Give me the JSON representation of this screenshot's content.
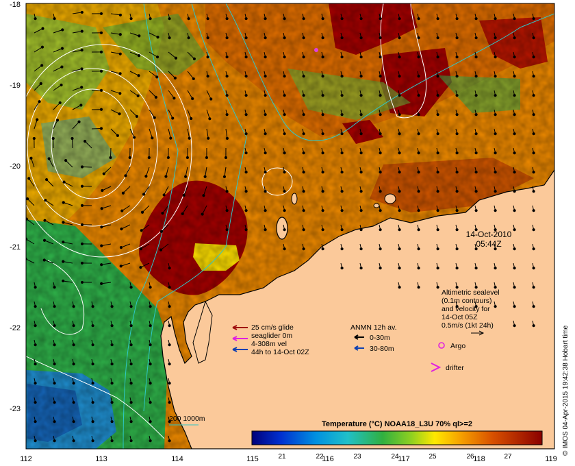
{
  "map": {
    "lon_ticks": [
      "112",
      "113",
      "114",
      "115",
      "116",
      "117",
      "118",
      "119"
    ],
    "lat_ticks": [
      "-18",
      "-19",
      "-20",
      "-21",
      "-22",
      "-23"
    ],
    "date": "14-Oct-2010",
    "time": "05:44Z",
    "credit": "© IMOS 04-Apr-2015 19:42:38 Hobart time",
    "land_color": "#fbc99a",
    "colors": {
      "hot": "#a30000",
      "warm": "#d86400",
      "mid": "#f08c00",
      "cool_green": "#2fb34a",
      "cyan": "#26b6c8",
      "yellow": "#ffe000"
    },
    "altimetry": {
      "l1": "Altimetric sealevel",
      "l2": "(0.1m contours)",
      "l3": "and velocity for",
      "l4": "14-Oct 05Z",
      "l5": "0.5m/s (1kt 24h)"
    },
    "argo_label": "Argo",
    "drifter_label": "drifter",
    "glider": {
      "l1": "25 cm/s glide",
      "l2": "seaglider 0m",
      "l3": "4-308m vel",
      "l4": "44h to 14-Oct 02Z"
    },
    "anmn": {
      "title": "ANMN 12h av.",
      "l1": "0-30m",
      "l2": "30-80m"
    },
    "isobath_label": "200  1000m",
    "colorbar": {
      "title": "Temperature (°C) NOAA18_L3U 70% ql>=2",
      "ticks": [
        "21",
        "22",
        "23",
        "24",
        "25",
        "26",
        "27"
      ]
    }
  }
}
